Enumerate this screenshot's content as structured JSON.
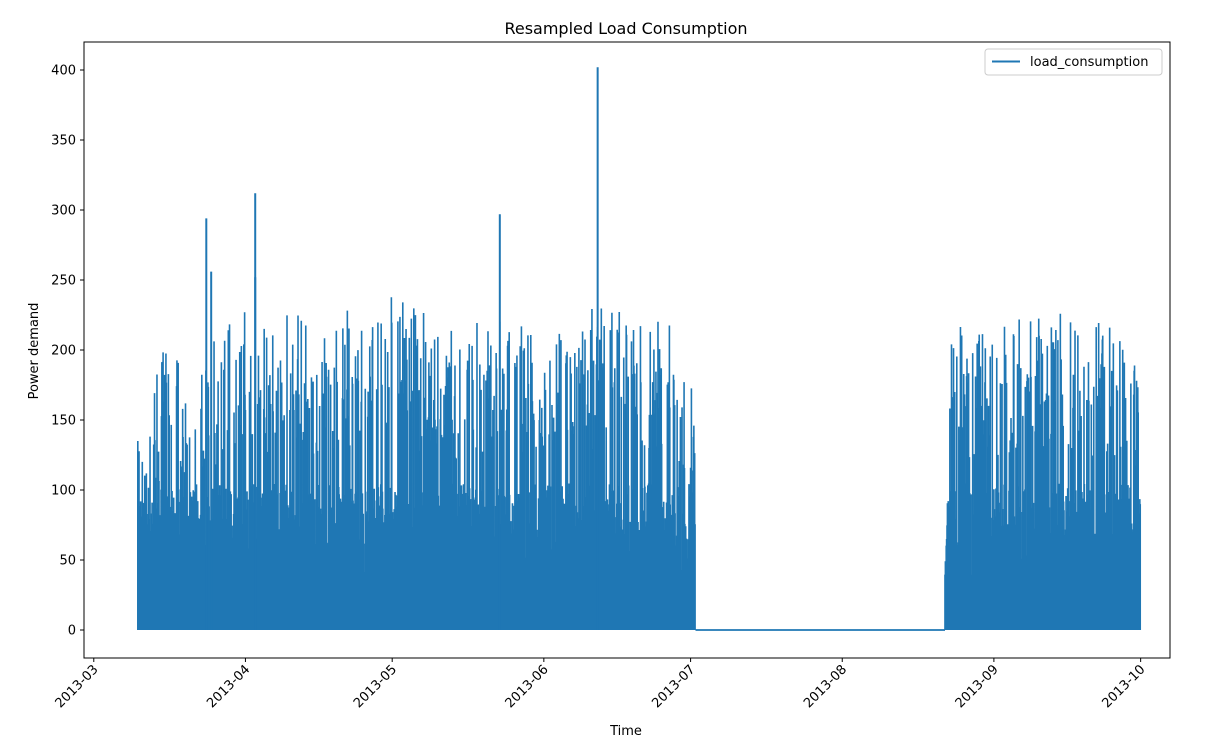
{
  "chart_data": {
    "type": "line",
    "title": "Resampled Load Consumption",
    "xlabel": "Time",
    "ylabel": "Power demand",
    "x_axis": "date",
    "xlim": [
      "2013-02-27",
      "2013-10-07"
    ],
    "ylim": [
      -20,
      420
    ],
    "x_ticks": [
      "2013-03",
      "2013-04",
      "2013-05",
      "2013-06",
      "2013-07",
      "2013-08",
      "2013-09",
      "2013-10"
    ],
    "y_ticks": [
      0,
      50,
      100,
      150,
      200,
      250,
      300,
      350,
      400
    ],
    "grid": false,
    "legend": {
      "position": "top-right",
      "entries": [
        "load_consumption"
      ]
    },
    "color": "#1f77b4",
    "series": [
      {
        "name": "load_consumption",
        "start": "2013-03-10",
        "end": "2013-10-01",
        "gaps": [
          [
            "2013-07-02",
            "2013-08-22"
          ]
        ],
        "dense_envelope": [
          [
            "2013-03-10",
            140
          ],
          [
            "2013-03-12",
            170
          ],
          [
            "2013-03-15",
            200
          ],
          [
            "2013-03-18",
            220
          ],
          [
            "2013-03-21",
            130
          ],
          [
            "2013-03-24",
            215
          ],
          [
            "2013-03-26",
            210
          ],
          [
            "2013-03-30",
            240
          ],
          [
            "2013-04-03",
            250
          ],
          [
            "2013-04-06",
            220
          ],
          [
            "2013-04-10",
            230
          ],
          [
            "2013-04-14",
            225
          ],
          [
            "2013-04-18",
            225
          ],
          [
            "2013-04-22",
            233
          ],
          [
            "2013-04-26",
            220
          ],
          [
            "2013-04-30",
            243
          ],
          [
            "2013-05-03",
            238
          ],
          [
            "2013-05-07",
            230
          ],
          [
            "2013-05-11",
            220
          ],
          [
            "2013-05-15",
            215
          ],
          [
            "2013-05-19",
            225
          ],
          [
            "2013-05-22",
            225
          ],
          [
            "2013-05-26",
            230
          ],
          [
            "2013-05-30",
            220
          ],
          [
            "2013-06-03",
            232
          ],
          [
            "2013-06-07",
            225
          ],
          [
            "2013-06-11",
            230
          ],
          [
            "2013-06-15",
            230
          ],
          [
            "2013-06-19",
            225
          ],
          [
            "2013-06-23",
            230
          ],
          [
            "2013-06-27",
            222
          ],
          [
            "2013-07-01",
            200
          ],
          [
            "2013-08-22",
            205
          ],
          [
            "2013-08-26",
            220
          ],
          [
            "2013-08-30",
            215
          ],
          [
            "2013-09-03",
            225
          ],
          [
            "2013-09-07",
            225
          ],
          [
            "2013-09-11",
            225
          ],
          [
            "2013-09-15",
            228
          ],
          [
            "2013-09-19",
            225
          ],
          [
            "2013-09-23",
            220
          ],
          [
            "2013-09-27",
            215
          ],
          [
            "2013-10-01",
            185
          ]
        ],
        "peaks": [
          [
            "2013-03-24",
            294
          ],
          [
            "2013-03-25",
            256
          ],
          [
            "2013-04-03",
            312
          ],
          [
            "2013-04-03",
            252
          ],
          [
            "2013-05-23",
            297
          ],
          [
            "2013-06-12",
            402
          ]
        ]
      }
    ]
  }
}
